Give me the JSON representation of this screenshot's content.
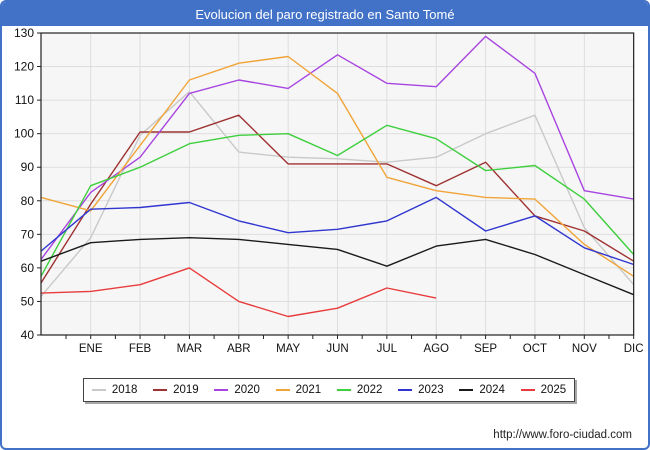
{
  "window": {
    "title": "Evolucion del paro registrado en Santo Tomé",
    "footer_url": "http://www.foro-ciudad.com",
    "frame_color": "#4272c8"
  },
  "chart_data": {
    "type": "line",
    "title": "Evolucion del paro registrado en Santo Tomé",
    "categories": [
      "ENE",
      "FEB",
      "MAR",
      "ABR",
      "MAY",
      "JUN",
      "JUL",
      "AGO",
      "SEP",
      "OCT",
      "NOV",
      "DIC"
    ],
    "ylim": [
      40,
      130
    ],
    "y_ticks": [
      40,
      50,
      60,
      70,
      80,
      90,
      100,
      110,
      120,
      130
    ],
    "grid": true,
    "legend_position": "bottom",
    "series": [
      {
        "name": "2018",
        "color": "#c9c9c9",
        "start_value": 51.5,
        "values": [
          69,
          99.5,
          112.5,
          94.5,
          93,
          92.5,
          91.5,
          93,
          100,
          105.5,
          72,
          55
        ]
      },
      {
        "name": "2019",
        "color": "#9e3232",
        "start_value": 55.5,
        "values": [
          79,
          100.5,
          100.5,
          105.5,
          91,
          91,
          91,
          84.5,
          91.5,
          75.5,
          71,
          62
        ]
      },
      {
        "name": "2020",
        "color": "#a845e0",
        "start_value": 62.5,
        "values": [
          82.5,
          93,
          112,
          116,
          113.5,
          123.5,
          115,
          114,
          129,
          118,
          83,
          80.5
        ]
      },
      {
        "name": "2021",
        "color": "#f0a438",
        "start_value": 81,
        "values": [
          77,
          96.5,
          116,
          121,
          123,
          112,
          87,
          83,
          81,
          80.5,
          67,
          57.5
        ]
      },
      {
        "name": "2022",
        "color": "#3ecf3e",
        "start_value": 57.5,
        "values": [
          84.5,
          90,
          97,
          99.5,
          100,
          93.5,
          102.5,
          98.5,
          89,
          90.5,
          80.5,
          64
        ]
      },
      {
        "name": "2023",
        "color": "#2f36cf",
        "start_value": 65,
        "values": [
          77.5,
          78,
          79.5,
          74,
          70.5,
          71.5,
          74,
          81,
          71,
          75.5,
          66,
          61
        ]
      },
      {
        "name": "2024",
        "color": "#1a1a1a",
        "start_value": 62,
        "values": [
          67.5,
          68.5,
          69,
          68.5,
          67,
          65.5,
          60.5,
          66.5,
          68.5,
          64,
          58,
          52
        ]
      },
      {
        "name": "2025",
        "color": "#e83c3c",
        "start_value": 52.5,
        "values": [
          53,
          55,
          60,
          50,
          45.5,
          48,
          54,
          51,
          null,
          null,
          null,
          null
        ]
      }
    ]
  }
}
